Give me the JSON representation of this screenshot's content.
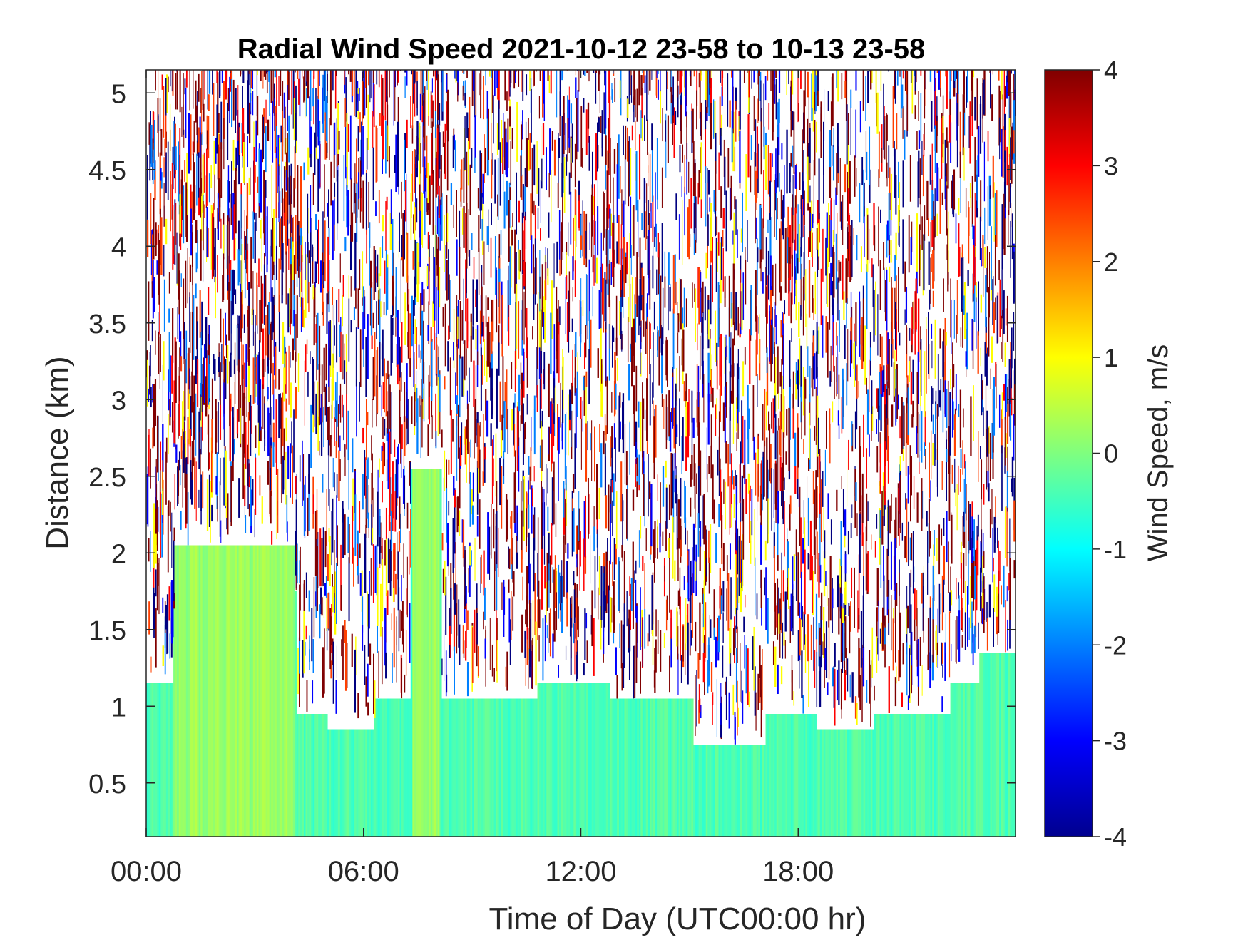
{
  "chart_data": {
    "type": "heatmap",
    "title": "Radial Wind Speed 2021-10-12 23-58 to 10-13 23-58",
    "xlabel": "Time of Day (UTC00:00 hr)",
    "ylabel": "Distance (km)",
    "colorbar_label": "Wind Speed, m/s",
    "colormap": "jet",
    "xlim_hours": [
      0,
      24
    ],
    "ylim_km": [
      0.15,
      5.15
    ],
    "clim": [
      -4,
      4
    ],
    "x_ticks": [
      {
        "value": 0,
        "label": "00:00"
      },
      {
        "value": 6,
        "label": "06:00"
      },
      {
        "value": 12,
        "label": "12:00"
      },
      {
        "value": 18,
        "label": "18:00"
      }
    ],
    "y_ticks": [
      {
        "value": 0.5,
        "label": "0.5"
      },
      {
        "value": 1,
        "label": "1"
      },
      {
        "value": 1.5,
        "label": "1.5"
      },
      {
        "value": 2,
        "label": "2"
      },
      {
        "value": 2.5,
        "label": "2.5"
      },
      {
        "value": 3,
        "label": "3"
      },
      {
        "value": 3.5,
        "label": "3.5"
      },
      {
        "value": 4,
        "label": "4"
      },
      {
        "value": 4.5,
        "label": "4.5"
      },
      {
        "value": 5,
        "label": "5"
      }
    ],
    "colorbar_ticks": [
      {
        "value": 4,
        "label": "4"
      },
      {
        "value": 3,
        "label": "3"
      },
      {
        "value": 2,
        "label": "2"
      },
      {
        "value": 1,
        "label": "1"
      },
      {
        "value": 0,
        "label": "0"
      },
      {
        "value": -1,
        "label": "-1"
      },
      {
        "value": -2,
        "label": "-2"
      },
      {
        "value": -3,
        "label": "-3"
      },
      {
        "value": -4,
        "label": "-4"
      }
    ],
    "noise_region": {
      "color_values_m_s": [
        4,
        4,
        4,
        -4,
        -4,
        2.5,
        -2,
        1,
        3,
        -3
      ]
    },
    "valid_signal_top_km": [
      {
        "t_start": 0.0,
        "t_end": 0.75,
        "top_km": 1.15
      },
      {
        "t_start": 0.75,
        "t_end": 1.0,
        "top_km": 1.75
      },
      {
        "t_start": 1.0,
        "t_end": 1.25,
        "top_km": 1.95
      },
      {
        "t_start": 1.25,
        "t_end": 1.85,
        "top_km": 2.05
      },
      {
        "t_start": 1.85,
        "t_end": 3.2,
        "top_km": 2.05
      },
      {
        "t_start": 3.2,
        "t_end": 3.75,
        "top_km": 1.95
      },
      {
        "t_start": 3.75,
        "t_end": 4.15,
        "top_km": 1.75
      },
      {
        "t_start": 4.15,
        "t_end": 5.0,
        "top_km": 0.95
      },
      {
        "t_start": 5.0,
        "t_end": 6.3,
        "top_km": 0.85
      },
      {
        "t_start": 6.3,
        "t_end": 7.3,
        "top_km": 1.05
      },
      {
        "t_start": 7.3,
        "t_end": 8.15,
        "top_km": 2.55
      },
      {
        "t_start": 8.15,
        "t_end": 10.8,
        "top_km": 1.05
      },
      {
        "t_start": 10.8,
        "t_end": 12.8,
        "top_km": 1.15
      },
      {
        "t_start": 12.8,
        "t_end": 15.1,
        "top_km": 1.05
      },
      {
        "t_start": 15.1,
        "t_end": 17.1,
        "top_km": 0.75
      },
      {
        "t_start": 17.1,
        "t_end": 18.5,
        "top_km": 0.95
      },
      {
        "t_start": 18.5,
        "t_end": 20.1,
        "top_km": 0.85
      },
      {
        "t_start": 20.1,
        "t_end": 22.2,
        "top_km": 0.95
      },
      {
        "t_start": 22.2,
        "t_end": 23.0,
        "top_km": 1.15
      },
      {
        "t_start": 23.0,
        "t_end": 24.0,
        "top_km": 1.35
      }
    ],
    "aerosol_layers": [
      {
        "t_start": 0.75,
        "t_end": 4.1,
        "top_km": 2.05,
        "value_m_s": 0.2
      },
      {
        "t_start": 7.35,
        "t_end": 8.1,
        "top_km": 2.55,
        "value_m_s": 0.2
      }
    ],
    "low_level_value_m_s": -0.4
  }
}
